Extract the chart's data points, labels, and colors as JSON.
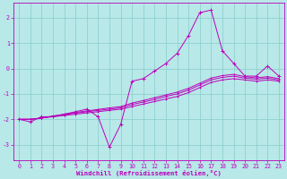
{
  "title": "",
  "xlabel": "Windchill (Refroidissement éolien,°C)",
  "ylabel": "",
  "bg_color": "#b8e8e8",
  "line_color": "#bb00bb",
  "grid_color": "#88cccc",
  "x_ticks": [
    0,
    1,
    2,
    3,
    4,
    5,
    6,
    7,
    8,
    9,
    10,
    11,
    12,
    13,
    14,
    15,
    16,
    17,
    18,
    19,
    20,
    21,
    22,
    23
  ],
  "y_ticks": [
    -3,
    -2,
    -1,
    0,
    1,
    2
  ],
  "xlim": [
    -0.5,
    23.5
  ],
  "ylim": [
    -3.6,
    2.6
  ],
  "series_main": [
    -2.0,
    -2.1,
    -1.9,
    -1.9,
    -1.8,
    -1.7,
    -1.6,
    -1.9,
    -3.1,
    -2.2,
    -0.5,
    -0.4,
    -0.1,
    0.2,
    0.6,
    1.3,
    2.2,
    2.3,
    0.7,
    0.2,
    -0.3,
    -0.3,
    0.1,
    -0.3
  ],
  "series_smooth1": [
    -2.0,
    -2.0,
    -1.95,
    -1.9,
    -1.85,
    -1.8,
    -1.75,
    -1.7,
    -1.65,
    -1.6,
    -1.5,
    -1.4,
    -1.3,
    -1.2,
    -1.1,
    -0.95,
    -0.75,
    -0.55,
    -0.45,
    -0.4,
    -0.45,
    -0.5,
    -0.45,
    -0.5
  ],
  "series_smooth2": [
    -2.0,
    -2.0,
    -1.95,
    -1.88,
    -1.82,
    -1.76,
    -1.7,
    -1.65,
    -1.6,
    -1.55,
    -1.42,
    -1.32,
    -1.22,
    -1.1,
    -1.0,
    -0.85,
    -0.65,
    -0.45,
    -0.35,
    -0.3,
    -0.38,
    -0.42,
    -0.38,
    -0.45
  ],
  "series_smooth3": [
    -2.0,
    -2.0,
    -1.95,
    -1.87,
    -1.8,
    -1.73,
    -1.67,
    -1.61,
    -1.55,
    -1.5,
    -1.36,
    -1.26,
    -1.15,
    -1.04,
    -0.93,
    -0.78,
    -0.58,
    -0.38,
    -0.28,
    -0.23,
    -0.32,
    -0.37,
    -0.32,
    -0.4
  ]
}
